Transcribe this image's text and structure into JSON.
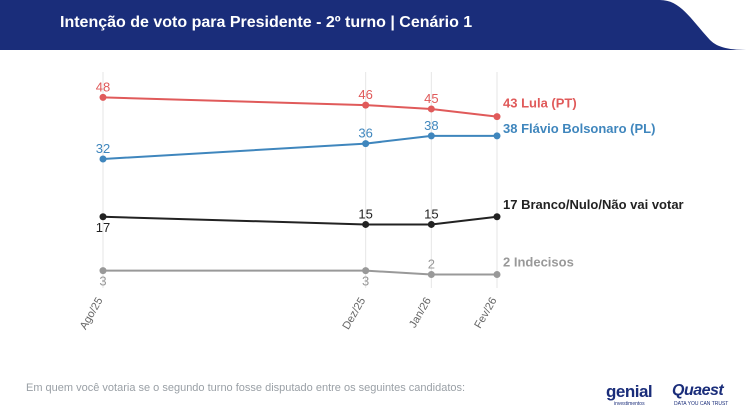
{
  "header": {
    "title": "Intenção de voto para Presidente - 2º turno | Cenário 1",
    "background": "#1a2d7a"
  },
  "footer": {
    "note": "Em quem você votaria se o segundo turno fosse disputado entre os seguintes candidatos:",
    "logo_genial": "genial",
    "logo_genial_sub": "investimentos",
    "logo_quaest": "Quaest",
    "logo_quaest_sub": "DATA YOU CAN TRUST"
  },
  "chart_data": {
    "type": "line",
    "title": "Intenção de voto para Presidente - 2º turno | Cenário 1",
    "xlabel": "",
    "ylabel": "",
    "categories": [
      "Ago/25",
      "Dez/25",
      "Jan/26",
      "Fev/26"
    ],
    "grid": "vertical",
    "series": [
      {
        "name": "Lula (PT)",
        "end_label": "43 Lula (PT)",
        "color": "#e05a5a",
        "values": [
          48,
          46,
          45,
          43
        ],
        "labels": [
          "48",
          "46",
          "45",
          ""
        ]
      },
      {
        "name": "Flávio Bolsonaro (PL)",
        "end_label": "38 Flávio Bolsonaro (PL)",
        "color": "#3f86bd",
        "values": [
          32,
          36,
          38,
          38
        ],
        "labels": [
          "32",
          "36",
          "38",
          ""
        ]
      },
      {
        "name": "Branco/Nulo/Não vai votar",
        "end_label": "17 Branco/Nulo/Não vai votar",
        "color": "#222222",
        "values": [
          17,
          15,
          15,
          17
        ],
        "labels": [
          "17",
          "15",
          "15",
          ""
        ]
      },
      {
        "name": "Indecisos",
        "end_label": "2 Indecisos",
        "color": "#999999",
        "values": [
          3,
          3,
          2,
          2
        ],
        "labels": [
          "3",
          "3",
          "2",
          ""
        ]
      }
    ]
  }
}
